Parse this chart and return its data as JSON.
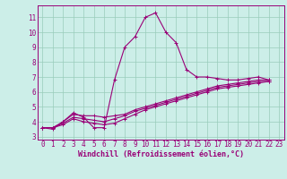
{
  "bg_color": "#cceee8",
  "line_color": "#990077",
  "grid_color": "#99ccbb",
  "xlabel": "Windchill (Refroidissement éolien,°C)",
  "xlim": [
    -0.5,
    23.5
  ],
  "ylim": [
    2.8,
    11.8
  ],
  "yticks": [
    3,
    4,
    5,
    6,
    7,
    8,
    9,
    10,
    11
  ],
  "xticks": [
    0,
    1,
    2,
    3,
    4,
    5,
    6,
    7,
    8,
    9,
    10,
    11,
    12,
    13,
    14,
    15,
    16,
    17,
    18,
    19,
    20,
    21,
    22,
    23
  ],
  "series": [
    [
      3.6,
      3.5,
      4.0,
      4.6,
      4.3,
      3.6,
      3.6,
      6.8,
      9.0,
      9.7,
      11.0,
      11.3,
      10.0,
      9.3,
      7.5,
      7.0,
      7.0,
      6.9,
      6.8,
      6.8,
      6.9,
      7.0,
      6.8
    ],
    [
      3.6,
      3.6,
      4.0,
      4.5,
      4.4,
      4.4,
      4.3,
      4.4,
      4.5,
      4.8,
      5.0,
      5.2,
      5.4,
      5.6,
      5.8,
      6.0,
      6.2,
      6.4,
      6.5,
      6.6,
      6.7,
      6.8,
      6.8
    ],
    [
      3.6,
      3.6,
      3.9,
      4.3,
      4.2,
      4.1,
      4.0,
      4.2,
      4.4,
      4.7,
      4.9,
      5.1,
      5.3,
      5.5,
      5.7,
      5.9,
      6.1,
      6.3,
      6.4,
      6.5,
      6.6,
      6.7,
      6.7
    ],
    [
      3.6,
      3.6,
      3.8,
      4.2,
      4.0,
      3.9,
      3.8,
      3.9,
      4.2,
      4.5,
      4.8,
      5.0,
      5.2,
      5.4,
      5.6,
      5.8,
      6.0,
      6.2,
      6.3,
      6.4,
      6.5,
      6.6,
      6.7
    ]
  ],
  "marker": "+",
  "marker_size": 3,
  "line_width": 0.8,
  "font_size_ticks": 5.5,
  "font_size_xlabel": 6.0
}
